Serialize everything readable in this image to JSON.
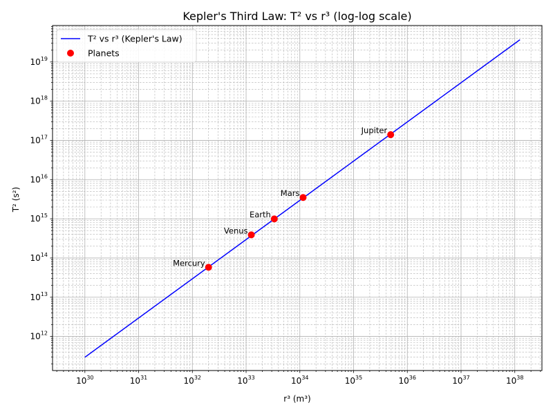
{
  "chart_data": {
    "type": "line",
    "title": "Kepler's Third Law: T² vs r³ (log-log scale)",
    "xlabel": "r³ (m³)",
    "ylabel": "T² (s²)",
    "xscale": "log",
    "yscale": "log",
    "xlim": [
      2.5e+29,
      3.2e+38
    ],
    "ylim": [
      135000000000.0,
      8.5e+19
    ],
    "x_tick_exponents": [
      30,
      31,
      32,
      33,
      34,
      35,
      36,
      37,
      38
    ],
    "y_tick_exponents": [
      12,
      13,
      14,
      15,
      16,
      17,
      18,
      19
    ],
    "tick_base": "10",
    "grid": true,
    "legend_position": "top-left",
    "series": [
      {
        "name": "T² vs r³ (Kepler's Law)",
        "kind": "line",
        "color": "#0000ff",
        "x": [
          1e+30,
          1.25e+38
        ],
        "y": [
          295000000000.0,
          3.7e+19
        ]
      },
      {
        "name": "Planets",
        "kind": "scatter",
        "color": "#ff0000",
        "points": [
          {
            "label": "Mercury",
            "x": 2e+32,
            "y": 58000000000000.0
          },
          {
            "label": "Venus",
            "x": 1.25e+33,
            "y": 390000000000000.0
          },
          {
            "label": "Earth",
            "x": 3.35e+33,
            "y": 995000000000000.0
          },
          {
            "label": "Mars",
            "x": 1.15e+34,
            "y": 3500000000000000.0
          },
          {
            "label": "Jupiter",
            "x": 4.9e+35,
            "y": 1.4e+17
          }
        ]
      }
    ]
  }
}
